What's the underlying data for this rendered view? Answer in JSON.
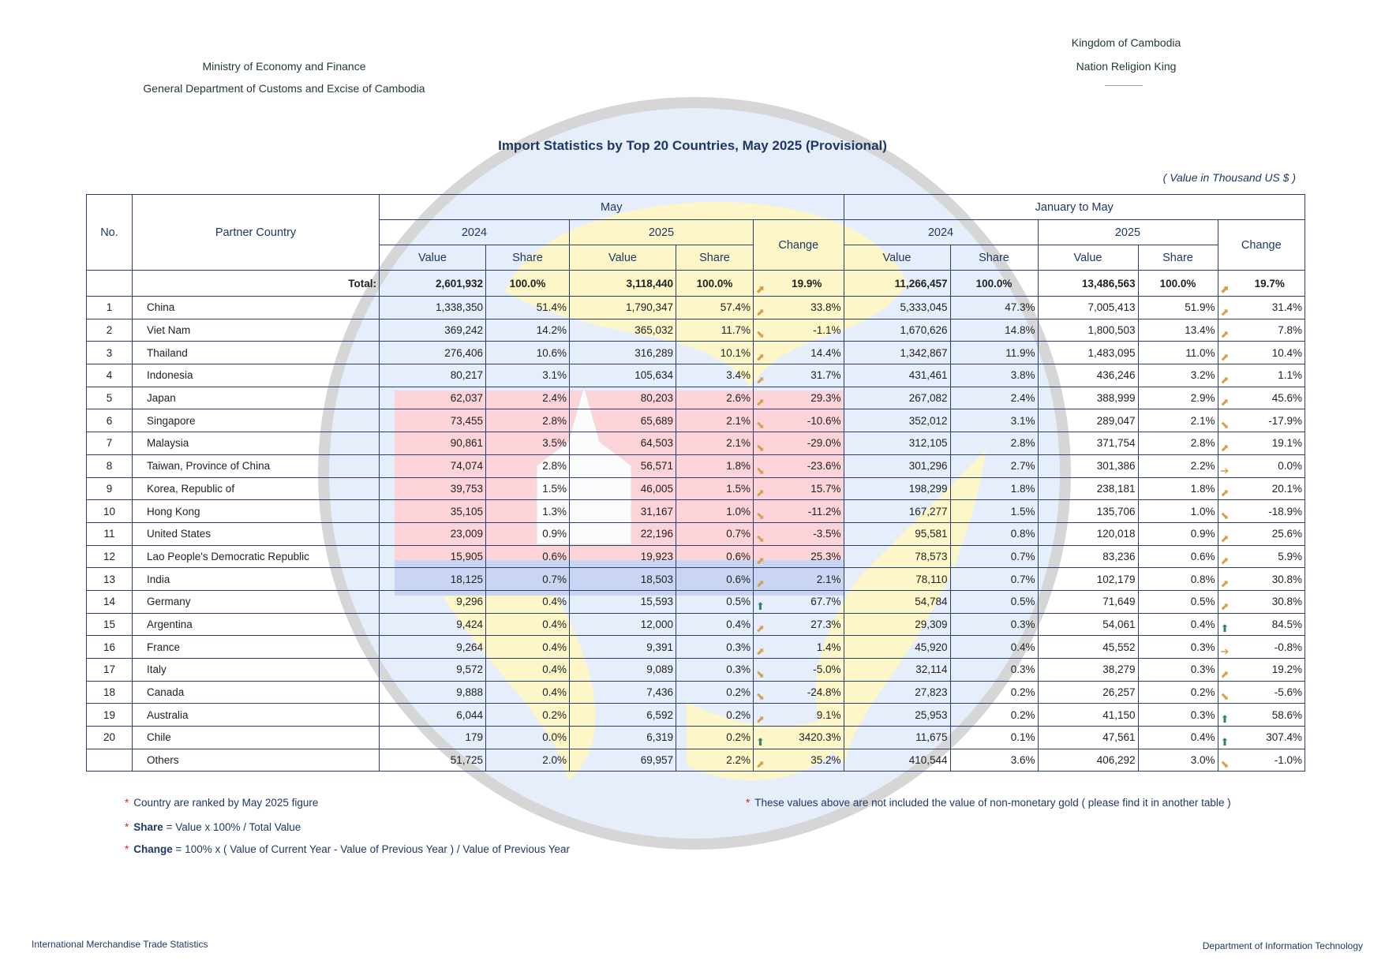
{
  "header": {
    "ministry": "Ministry of Economy and Finance",
    "department": "General Department of Customs and Excise of Cambodia",
    "kingdom": "Kingdom of Cambodia",
    "motto": "Nation Religion King"
  },
  "title": "Import Statistics by Top 20 Countries, May 2025  (Provisional)",
  "unit_note": "( Value in Thousand US $ )",
  "table": {
    "col_no": "No.",
    "col_country": "Partner Country",
    "group_may": "May",
    "group_ytd": "January to May",
    "year_prev": "2024",
    "year_curr": "2025",
    "value": "Value",
    "share": "Share",
    "change": "Change",
    "total_label": "Total:",
    "total": {
      "may24": "2,601,932",
      "may24s": "100.0%",
      "may25": "3,118,440",
      "may25s": "100.0%",
      "mayTrend": "up",
      "mayChg": "19.9%",
      "ytd24": "11,266,457",
      "ytd24s": "100.0%",
      "ytd25": "13,486,563",
      "ytd25s": "100.0%",
      "ytdTrend": "up",
      "ytdChg": "19.7%"
    },
    "rows": [
      {
        "no": "1",
        "country": "China",
        "v": [
          "1,338,350",
          "51.4%",
          "1,790,347",
          "57.4%"
        ],
        "mt": "up",
        "mc": "33.8%",
        "y": [
          "5,333,045",
          "47.3%",
          "7,005,413",
          "51.9%"
        ],
        "yt": "up",
        "yc": "31.4%"
      },
      {
        "no": "2",
        "country": "Viet Nam",
        "v": [
          "369,242",
          "14.2%",
          "365,032",
          "11.7%"
        ],
        "mt": "down",
        "mc": "-1.1%",
        "y": [
          "1,670,626",
          "14.8%",
          "1,800,503",
          "13.4%"
        ],
        "yt": "up",
        "yc": "7.8%"
      },
      {
        "no": "3",
        "country": "Thailand",
        "v": [
          "276,406",
          "10.6%",
          "316,289",
          "10.1%"
        ],
        "mt": "up",
        "mc": "14.4%",
        "y": [
          "1,342,867",
          "11.9%",
          "1,483,095",
          "11.0%"
        ],
        "yt": "up",
        "yc": "10.4%"
      },
      {
        "no": "4",
        "country": "Indonesia",
        "v": [
          "80,217",
          "3.1%",
          "105,634",
          "3.4%"
        ],
        "mt": "up",
        "mc": "31.7%",
        "y": [
          "431,461",
          "3.8%",
          "436,246",
          "3.2%"
        ],
        "yt": "up",
        "yc": "1.1%"
      },
      {
        "no": "5",
        "country": "Japan",
        "v": [
          "62,037",
          "2.4%",
          "80,203",
          "2.6%"
        ],
        "mt": "up",
        "mc": "29.3%",
        "y": [
          "267,082",
          "2.4%",
          "388,999",
          "2.9%"
        ],
        "yt": "up",
        "yc": "45.6%"
      },
      {
        "no": "6",
        "country": "Singapore",
        "v": [
          "73,455",
          "2.8%",
          "65,689",
          "2.1%"
        ],
        "mt": "down",
        "mc": "-10.6%",
        "y": [
          "352,012",
          "3.1%",
          "289,047",
          "2.1%"
        ],
        "yt": "down",
        "yc": "-17.9%"
      },
      {
        "no": "7",
        "country": "Malaysia",
        "v": [
          "90,861",
          "3.5%",
          "64,503",
          "2.1%"
        ],
        "mt": "down",
        "mc": "-29.0%",
        "y": [
          "312,105",
          "2.8%",
          "371,754",
          "2.8%"
        ],
        "yt": "up",
        "yc": "19.1%"
      },
      {
        "no": "8",
        "country": "Taiwan, Province of China",
        "v": [
          "74,074",
          "2.8%",
          "56,571",
          "1.8%"
        ],
        "mt": "down",
        "mc": "-23.6%",
        "y": [
          "301,296",
          "2.7%",
          "301,386",
          "2.2%"
        ],
        "yt": "flat",
        "yc": "0.0%"
      },
      {
        "no": "9",
        "country": "Korea, Republic of",
        "v": [
          "39,753",
          "1.5%",
          "46,005",
          "1.5%"
        ],
        "mt": "up",
        "mc": "15.7%",
        "y": [
          "198,299",
          "1.8%",
          "238,181",
          "1.8%"
        ],
        "yt": "up",
        "yc": "20.1%"
      },
      {
        "no": "10",
        "country": "Hong Kong",
        "v": [
          "35,105",
          "1.3%",
          "31,167",
          "1.0%"
        ],
        "mt": "down",
        "mc": "-11.2%",
        "y": [
          "167,277",
          "1.5%",
          "135,706",
          "1.0%"
        ],
        "yt": "down",
        "yc": "-18.9%"
      },
      {
        "no": "11",
        "country": "United States",
        "v": [
          "23,009",
          "0.9%",
          "22,196",
          "0.7%"
        ],
        "mt": "down",
        "mc": "-3.5%",
        "y": [
          "95,581",
          "0.8%",
          "120,018",
          "0.9%"
        ],
        "yt": "up",
        "yc": "25.6%"
      },
      {
        "no": "12",
        "country": "Lao People's Democratic Republic",
        "v": [
          "15,905",
          "0.6%",
          "19,923",
          "0.6%"
        ],
        "mt": "up",
        "mc": "25.3%",
        "y": [
          "78,573",
          "0.7%",
          "83,236",
          "0.6%"
        ],
        "yt": "up",
        "yc": "5.9%"
      },
      {
        "no": "13",
        "country": "India",
        "v": [
          "18,125",
          "0.7%",
          "18,503",
          "0.6%"
        ],
        "mt": "up",
        "mc": "2.1%",
        "y": [
          "78,110",
          "0.7%",
          "102,179",
          "0.8%"
        ],
        "yt": "up",
        "yc": "30.8%"
      },
      {
        "no": "14",
        "country": "Germany",
        "v": [
          "9,296",
          "0.4%",
          "15,593",
          "0.5%"
        ],
        "mt": "strong",
        "mc": "67.7%",
        "y": [
          "54,784",
          "0.5%",
          "71,649",
          "0.5%"
        ],
        "yt": "up",
        "yc": "30.8%"
      },
      {
        "no": "15",
        "country": "Argentina",
        "v": [
          "9,424",
          "0.4%",
          "12,000",
          "0.4%"
        ],
        "mt": "up",
        "mc": "27.3%",
        "y": [
          "29,309",
          "0.3%",
          "54,061",
          "0.4%"
        ],
        "yt": "strong",
        "yc": "84.5%"
      },
      {
        "no": "16",
        "country": "France",
        "v": [
          "9,264",
          "0.4%",
          "9,391",
          "0.3%"
        ],
        "mt": "up",
        "mc": "1.4%",
        "y": [
          "45,920",
          "0.4%",
          "45,552",
          "0.3%"
        ],
        "yt": "flat",
        "yc": "-0.8%"
      },
      {
        "no": "17",
        "country": "Italy",
        "v": [
          "9,572",
          "0.4%",
          "9,089",
          "0.3%"
        ],
        "mt": "down",
        "mc": "-5.0%",
        "y": [
          "32,114",
          "0.3%",
          "38,279",
          "0.3%"
        ],
        "yt": "up",
        "yc": "19.2%"
      },
      {
        "no": "18",
        "country": "Canada",
        "v": [
          "9,888",
          "0.4%",
          "7,436",
          "0.2%"
        ],
        "mt": "down",
        "mc": "-24.8%",
        "y": [
          "27,823",
          "0.2%",
          "26,257",
          "0.2%"
        ],
        "yt": "down",
        "yc": "-5.6%"
      },
      {
        "no": "19",
        "country": "Australia",
        "v": [
          "6,044",
          "0.2%",
          "6,592",
          "0.2%"
        ],
        "mt": "up",
        "mc": "9.1%",
        "y": [
          "25,953",
          "0.2%",
          "41,150",
          "0.3%"
        ],
        "yt": "strong",
        "yc": "58.6%"
      },
      {
        "no": "20",
        "country": "Chile",
        "v": [
          "179",
          "0.0%",
          "6,319",
          "0.2%"
        ],
        "mt": "strong",
        "mc": "3420.3%",
        "y": [
          "11,675",
          "0.1%",
          "47,561",
          "0.4%"
        ],
        "yt": "strong",
        "yc": "307.4%"
      },
      {
        "no": "",
        "country": "Others",
        "v": [
          "51,725",
          "2.0%",
          "69,957",
          "2.2%"
        ],
        "mt": "up",
        "mc": "35.2%",
        "y": [
          "410,544",
          "3.6%",
          "406,292",
          "3.0%"
        ],
        "yt": "down",
        "yc": "-1.0%"
      }
    ]
  },
  "trend_icons": {
    "up": "arrow-up-right-icon",
    "down": "arrow-down-right-icon",
    "flat": "arrow-right-icon",
    "strong": "arrow-up-icon"
  },
  "colors": {
    "trend_orange": "#d5a04c",
    "trend_green": "#2f8468",
    "border": "#2b3f6b"
  },
  "footnotes": {
    "ranked": "Country are ranked by May 2025 figure",
    "gold": "These values above are not included the value of non-monetary gold ( please find it in another table )",
    "share_term": "Share",
    "share_formula": "= Value x 100% / Total Value",
    "change_term": "Change",
    "change_formula": "= 100% x ( Value of Current Year - Value of Previous Year )  / Value of Previous Year"
  },
  "footer": {
    "left": "International Merchandise Trade Statistics",
    "right": "Department of Information Technology"
  }
}
